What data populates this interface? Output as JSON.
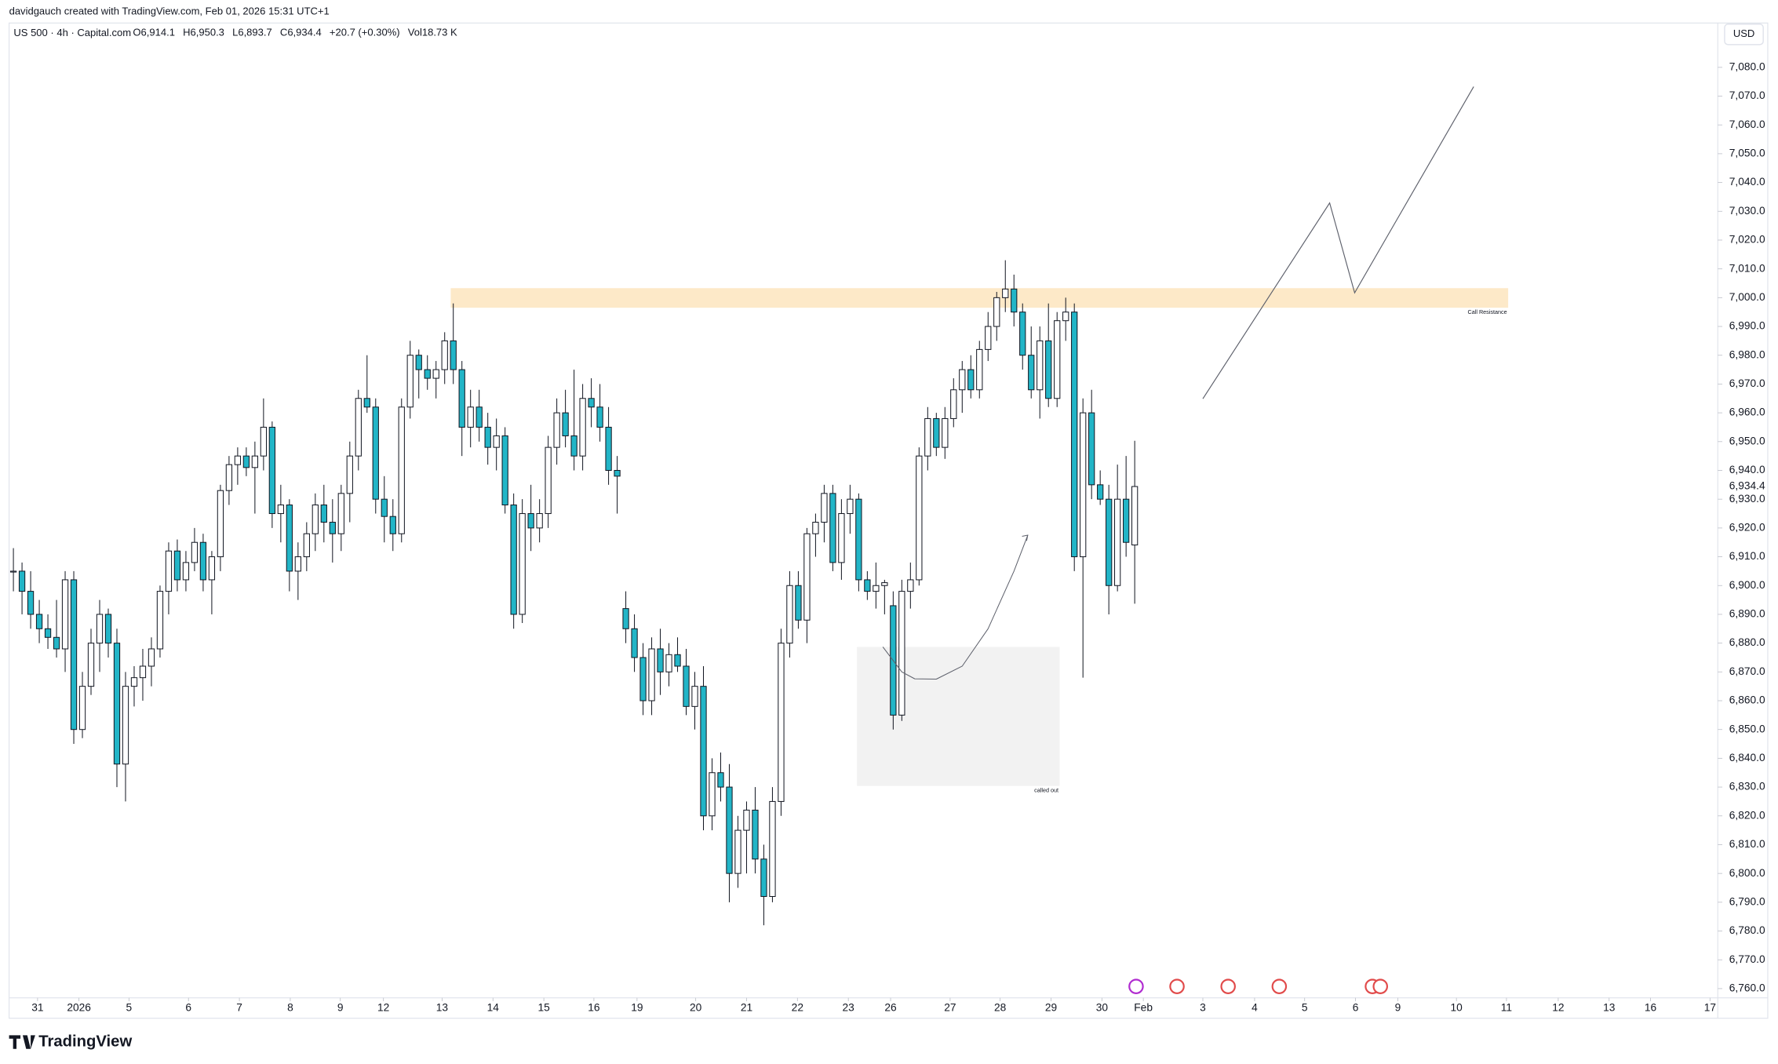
{
  "chart_data": {
    "type": "candlestick",
    "credit": "davidgauch created with TradingView.com, Feb 01, 2026 15:31 UTC+1",
    "symbol": "US 500 · 4h · Capital.com",
    "legend": [
      {
        "label": "O",
        "value": "6,914.1"
      },
      {
        "label": "H",
        "value": "6,950.3"
      },
      {
        "label": "L",
        "value": "6,893.7"
      },
      {
        "label": "C",
        "value": "6,934.4"
      },
      {
        "label": "",
        "value": "+20.7 (+0.30%)"
      },
      {
        "label": "Vol",
        "value": "18.73 K"
      }
    ],
    "currency": "USD",
    "brand": "TradingView",
    "up_color": "#ffffff",
    "down_color": "#22b5c7",
    "outline_color": "#131722",
    "last_price_label": "6,934.4",
    "ohlc": [
      [
        6905,
        6913,
        6898,
        6905
      ],
      [
        6905,
        6908,
        6890,
        6898
      ],
      [
        6898,
        6905,
        6885,
        6890
      ],
      [
        6890,
        6895,
        6880,
        6885
      ],
      [
        6885,
        6890,
        6878,
        6882
      ],
      [
        6882,
        6895,
        6875,
        6878
      ],
      [
        6878,
        6905,
        6870,
        6902
      ],
      [
        6902,
        6905,
        6845,
        6850
      ],
      [
        6850,
        6870,
        6847,
        6865
      ],
      [
        6865,
        6885,
        6862,
        6880
      ],
      [
        6880,
        6895,
        6870,
        6890
      ],
      [
        6890,
        6892,
        6875,
        6880
      ],
      [
        6880,
        6885,
        6830,
        6838
      ],
      [
        6838,
        6870,
        6825,
        6865
      ],
      [
        6865,
        6872,
        6858,
        6868
      ],
      [
        6868,
        6878,
        6860,
        6872
      ],
      [
        6872,
        6882,
        6865,
        6878
      ],
      [
        6878,
        6900,
        6875,
        6898
      ],
      [
        6898,
        6915,
        6890,
        6912
      ],
      [
        6912,
        6916,
        6898,
        6902
      ],
      [
        6902,
        6912,
        6898,
        6908
      ],
      [
        6908,
        6920,
        6905,
        6915
      ],
      [
        6915,
        6918,
        6898,
        6902
      ],
      [
        6902,
        6912,
        6890,
        6910
      ],
      [
        6910,
        6935,
        6905,
        6933
      ],
      [
        6933,
        6945,
        6928,
        6942
      ],
      [
        6942,
        6948,
        6935,
        6945
      ],
      [
        6945,
        6948,
        6938,
        6941
      ],
      [
        6941,
        6950,
        6925,
        6945
      ],
      [
        6945,
        6965,
        6940,
        6955
      ],
      [
        6955,
        6957,
        6920,
        6925
      ],
      [
        6925,
        6935,
        6915,
        6928
      ],
      [
        6928,
        6930,
        6898,
        6905
      ],
      [
        6905,
        6915,
        6895,
        6910
      ],
      [
        6910,
        6922,
        6905,
        6918
      ],
      [
        6918,
        6932,
        6912,
        6928
      ],
      [
        6928,
        6935,
        6915,
        6922
      ],
      [
        6922,
        6930,
        6908,
        6918
      ],
      [
        6918,
        6935,
        6912,
        6932
      ],
      [
        6932,
        6950,
        6922,
        6945
      ],
      [
        6945,
        6968,
        6940,
        6965
      ],
      [
        6965,
        6980,
        6960,
        6962
      ],
      [
        6962,
        6965,
        6925,
        6930
      ],
      [
        6930,
        6938,
        6915,
        6924
      ],
      [
        6924,
        6930,
        6912,
        6918
      ],
      [
        6918,
        6965,
        6915,
        6962
      ],
      [
        6962,
        6985,
        6958,
        6980
      ],
      [
        6980,
        6982,
        6965,
        6975
      ],
      [
        6975,
        6980,
        6968,
        6972
      ],
      [
        6972,
        6978,
        6965,
        6975
      ],
      [
        6975,
        6988,
        6970,
        6985
      ],
      [
        6985,
        6998,
        6970,
        6975
      ],
      [
        6975,
        6978,
        6945,
        6955
      ],
      [
        6955,
        6968,
        6948,
        6962
      ],
      [
        6962,
        6968,
        6950,
        6955
      ],
      [
        6955,
        6960,
        6942,
        6948
      ],
      [
        6948,
        6958,
        6940,
        6952
      ],
      [
        6952,
        6955,
        6925,
        6928
      ],
      [
        6928,
        6932,
        6885,
        6890
      ],
      [
        6890,
        6930,
        6887,
        6925
      ],
      [
        6925,
        6935,
        6912,
        6920
      ],
      [
        6920,
        6930,
        6915,
        6925
      ],
      [
        6925,
        6952,
        6920,
        6948
      ],
      [
        6948,
        6965,
        6942,
        6960
      ],
      [
        6960,
        6968,
        6948,
        6952
      ],
      [
        6952,
        6975,
        6940,
        6945
      ],
      [
        6945,
        6970,
        6940,
        6965
      ],
      [
        6965,
        6972,
        6955,
        6962
      ],
      [
        6962,
        6970,
        6950,
        6955
      ],
      [
        6955,
        6962,
        6935,
        6940
      ],
      [
        6940,
        6945,
        6925,
        6938
      ],
      [
        6892,
        6898,
        6880,
        6885
      ],
      [
        6885,
        6890,
        6870,
        6875
      ],
      [
        6875,
        6880,
        6855,
        6860
      ],
      [
        6860,
        6882,
        6855,
        6878
      ],
      [
        6878,
        6885,
        6862,
        6870
      ],
      [
        6870,
        6880,
        6865,
        6876
      ],
      [
        6876,
        6882,
        6870,
        6872
      ],
      [
        6872,
        6878,
        6855,
        6858
      ],
      [
        6858,
        6870,
        6850,
        6865
      ],
      [
        6865,
        6872,
        6815,
        6820
      ],
      [
        6820,
        6840,
        6815,
        6835
      ],
      [
        6835,
        6842,
        6825,
        6830
      ],
      [
        6830,
        6838,
        6790,
        6800
      ],
      [
        6800,
        6820,
        6795,
        6815
      ],
      [
        6815,
        6825,
        6800,
        6822
      ],
      [
        6822,
        6830,
        6800,
        6805
      ],
      [
        6805,
        6810,
        6782,
        6792
      ],
      [
        6792,
        6830,
        6790,
        6825
      ],
      [
        6825,
        6885,
        6820,
        6880
      ],
      [
        6880,
        6905,
        6875,
        6900
      ],
      [
        6900,
        6905,
        6885,
        6888
      ],
      [
        6888,
        6920,
        6880,
        6918
      ],
      [
        6918,
        6925,
        6910,
        6922
      ],
      [
        6922,
        6935,
        6915,
        6932
      ],
      [
        6932,
        6935,
        6905,
        6908
      ],
      [
        6908,
        6930,
        6902,
        6925
      ],
      [
        6925,
        6935,
        6918,
        6930
      ],
      [
        6930,
        6932,
        6898,
        6902
      ],
      [
        6902,
        6905,
        6895,
        6898
      ],
      [
        6898,
        6908,
        6892,
        6900
      ],
      [
        6900,
        6902,
        6890,
        6901
      ],
      [
        6893,
        6898,
        6850,
        6855
      ],
      [
        6855,
        6902,
        6853,
        6898
      ],
      [
        6898,
        6908,
        6892,
        6902
      ],
      [
        6902,
        6948,
        6900,
        6945
      ],
      [
        6945,
        6962,
        6940,
        6958
      ],
      [
        6958,
        6960,
        6945,
        6948
      ],
      [
        6948,
        6962,
        6944,
        6958
      ],
      [
        6958,
        6972,
        6955,
        6968
      ],
      [
        6968,
        6978,
        6960,
        6975
      ],
      [
        6975,
        6980,
        6965,
        6968
      ],
      [
        6968,
        6985,
        6965,
        6982
      ],
      [
        6982,
        6995,
        6978,
        6990
      ],
      [
        6990,
        7002,
        6985,
        7000
      ],
      [
        7000,
        7013,
        6995,
        7003
      ],
      [
        7003,
        7008,
        6990,
        6995
      ],
      [
        6995,
        6998,
        6975,
        6980
      ],
      [
        6980,
        6990,
        6965,
        6968
      ],
      [
        6968,
        6990,
        6958,
        6985
      ],
      [
        6985,
        6998,
        6962,
        6965
      ],
      [
        6965,
        6995,
        6962,
        6992
      ],
      [
        6992,
        7000,
        6985,
        6995
      ],
      [
        6995,
        6998,
        6905,
        6910
      ],
      [
        6910,
        6965,
        6868,
        6960
      ],
      [
        6960,
        6968,
        6930,
        6935
      ],
      [
        6935,
        6940,
        6928,
        6930
      ],
      [
        6930,
        6935,
        6890,
        6900
      ],
      [
        6900,
        6942,
        6898,
        6930
      ],
      [
        6930,
        6945,
        6910,
        6915
      ],
      [
        6914.1,
        6950.3,
        6893.7,
        6934.4
      ]
    ],
    "xlim": [
      -0.5,
      197.6
    ],
    "ylim": [
      6756.8,
      7095.4
    ],
    "xticks": [
      {
        "value": 2.8,
        "label": "31"
      },
      {
        "value": 7.6,
        "label": "2026"
      },
      {
        "value": 13.4,
        "label": "5"
      },
      {
        "value": 20.3,
        "label": "6"
      },
      {
        "value": 26.2,
        "label": "7"
      },
      {
        "value": 32.1,
        "label": "8"
      },
      {
        "value": 37.9,
        "label": "9"
      },
      {
        "value": 42.9,
        "label": "12"
      },
      {
        "value": 49.7,
        "label": "13"
      },
      {
        "value": 55.6,
        "label": "14"
      },
      {
        "value": 61.5,
        "label": "15"
      },
      {
        "value": 67.3,
        "label": "16"
      },
      {
        "value": 72.3,
        "label": "19"
      },
      {
        "value": 79.1,
        "label": "20"
      },
      {
        "value": 85,
        "label": "21"
      },
      {
        "value": 90.9,
        "label": "22"
      },
      {
        "value": 96.8,
        "label": "23"
      },
      {
        "value": 101.7,
        "label": "26"
      },
      {
        "value": 108.6,
        "label": "27"
      },
      {
        "value": 114.4,
        "label": "28"
      },
      {
        "value": 120.3,
        "label": "29"
      },
      {
        "value": 126.2,
        "label": "30"
      },
      {
        "value": 131,
        "label": "Feb"
      },
      {
        "value": 137.9,
        "label": "3"
      },
      {
        "value": 143.9,
        "label": "4"
      },
      {
        "value": 149.7,
        "label": "5"
      },
      {
        "value": 155.6,
        "label": "6"
      },
      {
        "value": 160.5,
        "label": "9"
      },
      {
        "value": 167.3,
        "label": "10"
      },
      {
        "value": 173.1,
        "label": "11"
      },
      {
        "value": 179.1,
        "label": "12"
      },
      {
        "value": 185,
        "label": "13"
      },
      {
        "value": 189.8,
        "label": "16"
      },
      {
        "value": 196.7,
        "label": "17"
      }
    ],
    "yticks": [
      {
        "value": 7080,
        "label": "7,080.0"
      },
      {
        "value": 7070,
        "label": "7,070.0"
      },
      {
        "value": 7060,
        "label": "7,060.0"
      },
      {
        "value": 7050,
        "label": "7,050.0"
      },
      {
        "value": 7040,
        "label": "7,040.0"
      },
      {
        "value": 7030,
        "label": "7,030.0"
      },
      {
        "value": 7020,
        "label": "7,020.0"
      },
      {
        "value": 7010,
        "label": "7,010.0"
      },
      {
        "value": 7000,
        "label": "7,000.0"
      },
      {
        "value": 6990,
        "label": "6,990.0"
      },
      {
        "value": 6980,
        "label": "6,980.0"
      },
      {
        "value": 6970,
        "label": "6,970.0"
      },
      {
        "value": 6960,
        "label": "6,960.0"
      },
      {
        "value": 6950,
        "label": "6,950.0"
      },
      {
        "value": 6940,
        "label": "6,940.0"
      },
      {
        "value": 6930,
        "label": "6,930.0"
      },
      {
        "value": 6920,
        "label": "6,920.0"
      },
      {
        "value": 6910,
        "label": "6,910.0"
      },
      {
        "value": 6900,
        "label": "6,900.0"
      },
      {
        "value": 6890,
        "label": "6,890.0"
      },
      {
        "value": 6880,
        "label": "6,880.0"
      },
      {
        "value": 6870,
        "label": "6,870.0"
      },
      {
        "value": 6860,
        "label": "6,860.0"
      },
      {
        "value": 6850,
        "label": "6,850.0"
      },
      {
        "value": 6840,
        "label": "6,840.0"
      },
      {
        "value": 6830,
        "label": "6,830.0"
      },
      {
        "value": 6820,
        "label": "6,820.0"
      },
      {
        "value": 6810,
        "label": "6,810.0"
      },
      {
        "value": 6800,
        "label": "6,800.0"
      },
      {
        "value": 6790,
        "label": "6,790.0"
      },
      {
        "value": 6780,
        "label": "6,780.0"
      },
      {
        "value": 6770,
        "label": "6,770.0"
      },
      {
        "value": 6760,
        "label": "6,760.0"
      }
    ],
    "zones": [
      {
        "label": "Call Resistance",
        "x": [
          50.7,
          173.3
        ],
        "y": [
          6996.5,
          7003.3
        ],
        "color": "#fde9c8"
      },
      {
        "label": "called out",
        "x": [
          97.8,
          121.3
        ],
        "y": [
          6830.4,
          6878.7
        ],
        "color": "#f2f2f2"
      }
    ],
    "projection": {
      "x": [
        137.9,
        152.6,
        155.5,
        169.3
      ],
      "y": [
        6964.9,
        7032.9,
        7001.7,
        7073.3
      ]
    },
    "arrow": {
      "x": [
        100.8,
        103,
        104.5,
        107,
        110,
        113,
        116,
        117.6
      ],
      "y": [
        6878.7,
        6870,
        6867.6,
        6867.5,
        6872,
        6885,
        6905,
        6917.5
      ]
    }
  }
}
